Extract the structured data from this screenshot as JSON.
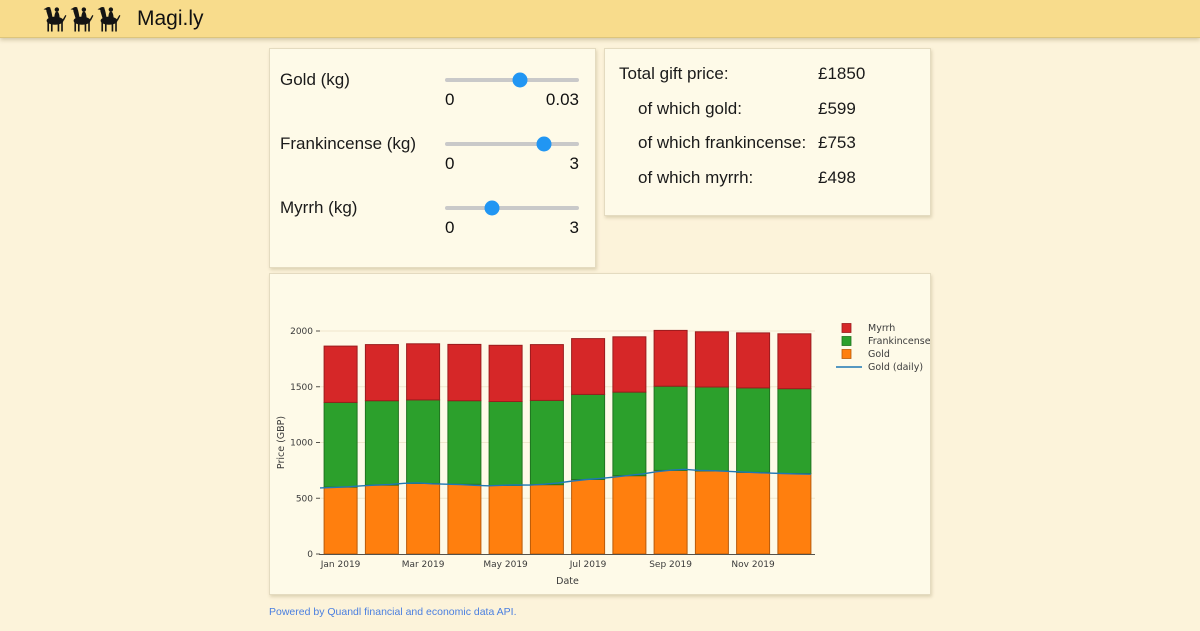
{
  "header": {
    "app_title": "Magi.ly",
    "logo": "three-camels-icon"
  },
  "sliders": {
    "rows": [
      {
        "label": "Gold (kg)",
        "min": "0",
        "max": "0.03",
        "position_pct": 56
      },
      {
        "label": "Frankincense (kg)",
        "min": "0",
        "max": "3",
        "position_pct": 74
      },
      {
        "label": "Myrrh (kg)",
        "min": "0",
        "max": "3",
        "position_pct": 35
      }
    ]
  },
  "summary": {
    "rows": [
      {
        "label": "Total gift price:",
        "value": "£1850",
        "indent": false
      },
      {
        "label": "of which gold:",
        "value": "£599",
        "indent": true
      },
      {
        "label": "of which frankincense:",
        "value": "£753",
        "indent": true
      },
      {
        "label": "of which myrrh:",
        "value": "£498",
        "indent": true
      }
    ]
  },
  "chart_data": {
    "type": "bar",
    "stacked": true,
    "title": "",
    "xlabel": "Date",
    "ylabel": "Price (GBP)",
    "ylim": [
      0,
      2000
    ],
    "yticks": [
      0,
      500,
      1000,
      1500,
      2000
    ],
    "categories": [
      "Jan 2019",
      "Feb 2019",
      "Mar 2019",
      "Apr 2019",
      "May 2019",
      "Jun 2019",
      "Jul 2019",
      "Aug 2019",
      "Sep 2019",
      "Oct 2019",
      "Nov 2019",
      "Dec 2019"
    ],
    "xticks_shown": [
      "Jan 2019",
      "Mar 2019",
      "May 2019",
      "Jul 2019",
      "Sep 2019",
      "Nov 2019"
    ],
    "grid": true,
    "legend_position": "right-top",
    "legend": [
      "Myrrh",
      "Frankincense",
      "Gold",
      "Gold (daily)"
    ],
    "series": [
      {
        "name": "Gold",
        "color": "#ff7f0e",
        "values": [
          600,
          618,
          632,
          625,
          615,
          622,
          668,
          702,
          750,
          745,
          732,
          722
        ]
      },
      {
        "name": "Frankincense",
        "color": "#2ca02c",
        "values": [
          760,
          757,
          750,
          750,
          753,
          756,
          764,
          750,
          755,
          753,
          758,
          761
        ]
      },
      {
        "name": "Myrrh",
        "color": "#d62728",
        "values": [
          505,
          503,
          503,
          505,
          504,
          500,
          500,
          496,
          500,
          495,
          493,
          492
        ]
      }
    ],
    "line_series": {
      "name": "Gold (daily)",
      "color": "#1f77b4",
      "values": [
        593,
        597,
        603,
        612,
        618,
        624,
        634,
        638,
        630,
        626,
        622,
        616,
        612,
        616,
        620,
        618,
        626,
        638,
        655,
        668,
        678,
        690,
        705,
        718,
        738,
        752,
        760,
        750,
        747,
        742,
        736,
        730,
        726,
        722,
        718,
        716
      ]
    }
  },
  "footer": {
    "powered_by": "Powered by Quandl financial and economic data API."
  },
  "colors": {
    "header_bg": "#f8dc8c",
    "page_bg": "#fcf3da",
    "panel_bg": "#fefae8",
    "slider_thumb": "#2196f3",
    "link": "#4a7fe0"
  }
}
